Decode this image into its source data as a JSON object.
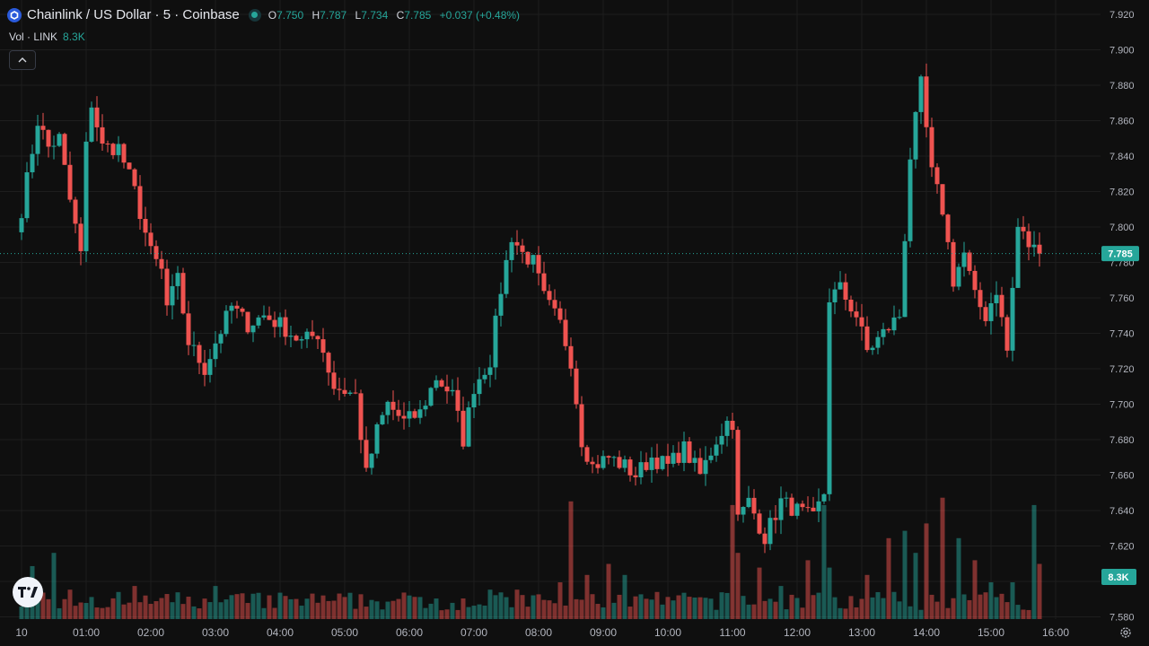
{
  "header": {
    "title": "Chainlink / US Dollar · 5 · Coinbase",
    "ohlc": [
      {
        "label": "O",
        "value": "7.750"
      },
      {
        "label": "H",
        "value": "7.787"
      },
      {
        "label": "L",
        "value": "7.734"
      },
      {
        "label": "C",
        "value": "7.785"
      }
    ],
    "change": "+0.037 (+0.48%)",
    "volume_label": "Vol · LINK",
    "volume_value": "8.3K"
  },
  "price_badge": "7.785",
  "volume_badge": "8.3K",
  "icons": {
    "collapse": "chevron-up-icon",
    "brand": "tradingview-logo",
    "settings": "gear-icon",
    "symbol": "chainlink-icon"
  },
  "colors": {
    "up": "#26a69a",
    "down": "#ef5350",
    "background": "#0f0f0f",
    "grid": "#1e1e1e"
  },
  "chart_data": {
    "type": "candlestick",
    "symbol": "LINK/USD",
    "interval": "5",
    "y_ticks": [
      "7.920",
      "7.900",
      "7.880",
      "7.860",
      "7.840",
      "7.820",
      "7.800",
      "7.780",
      "7.760",
      "7.740",
      "7.720",
      "7.700",
      "7.680",
      "7.660",
      "7.640",
      "7.620",
      "7.600",
      "7.580"
    ],
    "ylim": [
      7.574,
      7.927
    ],
    "x_ticks": [
      "10",
      "01:00",
      "02:00",
      "03:00",
      "04:00",
      "05:00",
      "06:00",
      "07:00",
      "08:00",
      "09:00",
      "10:00",
      "11:00",
      "12:00",
      "13:00",
      "14:00",
      "15:00",
      "16:00"
    ],
    "current_price": 7.785,
    "anchors": [
      [
        "00:00",
        7.81
      ],
      [
        "00:15",
        7.86
      ],
      [
        "00:25",
        7.845
      ],
      [
        "00:35",
        7.85
      ],
      [
        "00:45",
        7.815
      ],
      [
        "00:55",
        7.785
      ],
      [
        "01:00",
        7.845
      ],
      [
        "01:05",
        7.87
      ],
      [
        "01:15",
        7.845
      ],
      [
        "01:30",
        7.845
      ],
      [
        "01:45",
        7.82
      ],
      [
        "02:00",
        7.785
      ],
      [
        "02:10",
        7.775
      ],
      [
        "02:15",
        7.755
      ],
      [
        "02:25",
        7.77
      ],
      [
        "02:35",
        7.735
      ],
      [
        "02:50",
        7.72
      ],
      [
        "03:00",
        7.735
      ],
      [
        "03:15",
        7.755
      ],
      [
        "03:30",
        7.745
      ],
      [
        "03:45",
        7.75
      ],
      [
        "04:00",
        7.745
      ],
      [
        "04:20",
        7.735
      ],
      [
        "04:35",
        7.74
      ],
      [
        "04:50",
        7.71
      ],
      [
        "05:10",
        7.705
      ],
      [
        "05:20",
        7.66
      ],
      [
        "05:30",
        7.685
      ],
      [
        "05:40",
        7.7
      ],
      [
        "05:55",
        7.69
      ],
      [
        "06:10",
        7.695
      ],
      [
        "06:25",
        7.715
      ],
      [
        "06:40",
        7.705
      ],
      [
        "06:50",
        7.68
      ],
      [
        "07:00",
        7.71
      ],
      [
        "07:15",
        7.725
      ],
      [
        "07:25",
        7.765
      ],
      [
        "07:35",
        7.795
      ],
      [
        "07:45",
        7.785
      ],
      [
        "07:55",
        7.78
      ],
      [
        "08:05",
        7.76
      ],
      [
        "08:20",
        7.745
      ],
      [
        "08:30",
        7.725
      ],
      [
        "08:40",
        7.68
      ],
      [
        "08:50",
        7.665
      ],
      [
        "09:05",
        7.67
      ],
      [
        "09:20",
        7.665
      ],
      [
        "09:30",
        7.66
      ],
      [
        "09:45",
        7.67
      ],
      [
        "10:00",
        7.665
      ],
      [
        "10:15",
        7.675
      ],
      [
        "10:30",
        7.66
      ],
      [
        "10:45",
        7.68
      ],
      [
        "10:55",
        7.69
      ],
      [
        "11:00",
        7.69
      ],
      [
        "11:05",
        7.635
      ],
      [
        "11:15",
        7.645
      ],
      [
        "11:30",
        7.625
      ],
      [
        "11:45",
        7.645
      ],
      [
        "12:00",
        7.64
      ],
      [
        "12:15",
        7.635
      ],
      [
        "12:25",
        7.65
      ],
      [
        "12:30",
        7.76
      ],
      [
        "12:40",
        7.765
      ],
      [
        "12:55",
        7.75
      ],
      [
        "13:05",
        7.73
      ],
      [
        "13:20",
        7.74
      ],
      [
        "13:35",
        7.75
      ],
      [
        "13:45",
        7.84
      ],
      [
        "13:55",
        7.88
      ],
      [
        "14:05",
        7.83
      ],
      [
        "14:15",
        7.81
      ],
      [
        "14:25",
        7.77
      ],
      [
        "14:35",
        7.785
      ],
      [
        "14:45",
        7.76
      ],
      [
        "14:55",
        7.75
      ],
      [
        "15:05",
        7.765
      ],
      [
        "15:15",
        7.73
      ],
      [
        "15:25",
        7.8
      ],
      [
        "15:35",
        7.79
      ],
      [
        "15:45",
        7.785
      ]
    ],
    "volume_spikes": [
      [
        "00:10",
        0.72
      ],
      [
        "00:30",
        0.9
      ],
      [
        "00:45",
        0.4
      ],
      [
        "01:05",
        0.3
      ],
      [
        "01:45",
        0.45
      ],
      [
        "03:00",
        0.45
      ],
      [
        "04:50",
        0.25
      ],
      [
        "06:10",
        0.3
      ],
      [
        "07:15",
        0.4
      ],
      [
        "07:40",
        0.4
      ],
      [
        "08:20",
        0.5
      ],
      [
        "08:30",
        1.6
      ],
      [
        "08:45",
        0.6
      ],
      [
        "09:05",
        0.75
      ],
      [
        "09:20",
        0.6
      ],
      [
        "11:00",
        1.55
      ],
      [
        "11:05",
        0.9
      ],
      [
        "11:25",
        0.7
      ],
      [
        "11:45",
        0.45
      ],
      [
        "12:10",
        0.8
      ],
      [
        "12:25",
        1.55
      ],
      [
        "12:30",
        0.7
      ],
      [
        "13:05",
        0.6
      ],
      [
        "13:25",
        1.1
      ],
      [
        "13:40",
        1.2
      ],
      [
        "13:50",
        0.9
      ],
      [
        "14:00",
        1.3
      ],
      [
        "14:15",
        1.65
      ],
      [
        "14:30",
        1.1
      ],
      [
        "14:45",
        0.8
      ],
      [
        "15:00",
        0.5
      ],
      [
        "15:20",
        0.5
      ],
      [
        "15:40",
        1.55
      ],
      [
        "15:45",
        0.75
      ]
    ]
  }
}
